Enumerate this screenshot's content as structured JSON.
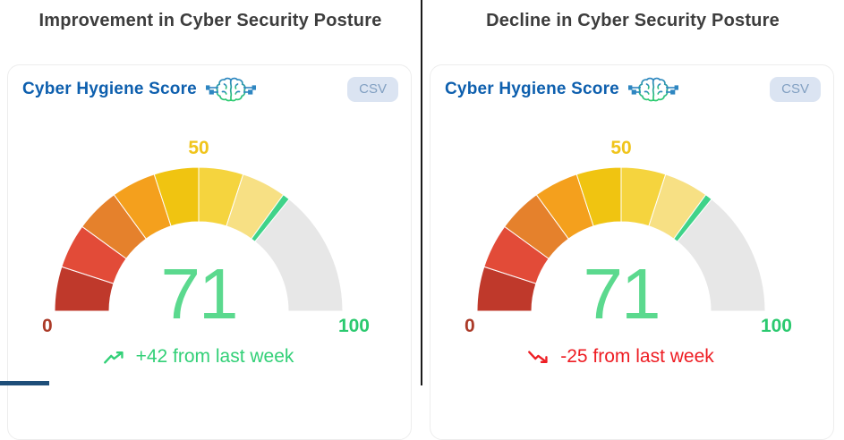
{
  "theme": {
    "title_color": "#3d3d3d",
    "heading_color": "#0d5fae",
    "csv_bg": "#dbe4f2",
    "csv_fg": "#82a0c2",
    "card_border": "#ededed",
    "divider_color": "#1a1a1a",
    "cutoff_bar_color": "#1e4e79",
    "brain_icon_blue": "#2e86c1",
    "brain_icon_green": "#2ecc71"
  },
  "panels": [
    {
      "title": "Improvement in Cyber Security Posture",
      "card": {
        "heading": "Cyber Hygiene Score",
        "csv_label": "CSV"
      },
      "delta": {
        "text": "+42 from last week",
        "direction": "up",
        "color": "#32d077"
      }
    },
    {
      "title": "Decline in Cyber Security Posture",
      "card": {
        "heading": "Cyber Hygiene Score",
        "csv_label": "CSV"
      },
      "delta": {
        "text": "-25 from last week",
        "direction": "down",
        "color": "#ee1d23"
      }
    }
  ],
  "chart_data": [
    {
      "type": "gauge",
      "title": "Cyber Hygiene Score",
      "value": 71,
      "min": 0,
      "max": 100,
      "tick_labels": [
        "0",
        "50",
        "100"
      ],
      "tick_colors": [
        "#ab3a28",
        "#f0c41b",
        "#2bc96f"
      ],
      "value_color": "#5bd98e",
      "annotation": "+42 from last week",
      "segments": [
        {
          "from": 0,
          "to": 10,
          "color": "#bf392b"
        },
        {
          "from": 10,
          "to": 20,
          "color": "#e24b38"
        },
        {
          "from": 20,
          "to": 30,
          "color": "#e5812c"
        },
        {
          "from": 30,
          "to": 40,
          "color": "#f4a01d"
        },
        {
          "from": 40,
          "to": 50,
          "color": "#f0c411"
        },
        {
          "from": 50,
          "to": 60,
          "color": "#f5d43e"
        },
        {
          "from": 60,
          "to": 70,
          "color": "#f7e084"
        },
        {
          "from": 71.6,
          "to": 100,
          "color": "#e7e7e7"
        }
      ],
      "pointer": {
        "from": 70,
        "to": 71.6,
        "color": "#3fd389"
      }
    },
    {
      "type": "gauge",
      "title": "Cyber Hygiene Score",
      "value": 71,
      "min": 0,
      "max": 100,
      "tick_labels": [
        "0",
        "50",
        "100"
      ],
      "tick_colors": [
        "#ab3a28",
        "#f0c41b",
        "#2bc96f"
      ],
      "value_color": "#5bd98e",
      "annotation": "-25 from last week",
      "segments": [
        {
          "from": 0,
          "to": 10,
          "color": "#bf392b"
        },
        {
          "from": 10,
          "to": 20,
          "color": "#e24b38"
        },
        {
          "from": 20,
          "to": 30,
          "color": "#e5812c"
        },
        {
          "from": 30,
          "to": 40,
          "color": "#f4a01d"
        },
        {
          "from": 40,
          "to": 50,
          "color": "#f0c411"
        },
        {
          "from": 50,
          "to": 60,
          "color": "#f5d43e"
        },
        {
          "from": 60,
          "to": 70,
          "color": "#f7e084"
        },
        {
          "from": 71.6,
          "to": 100,
          "color": "#e7e7e7"
        }
      ],
      "pointer": {
        "from": 70,
        "to": 71.6,
        "color": "#3fd389"
      }
    }
  ]
}
